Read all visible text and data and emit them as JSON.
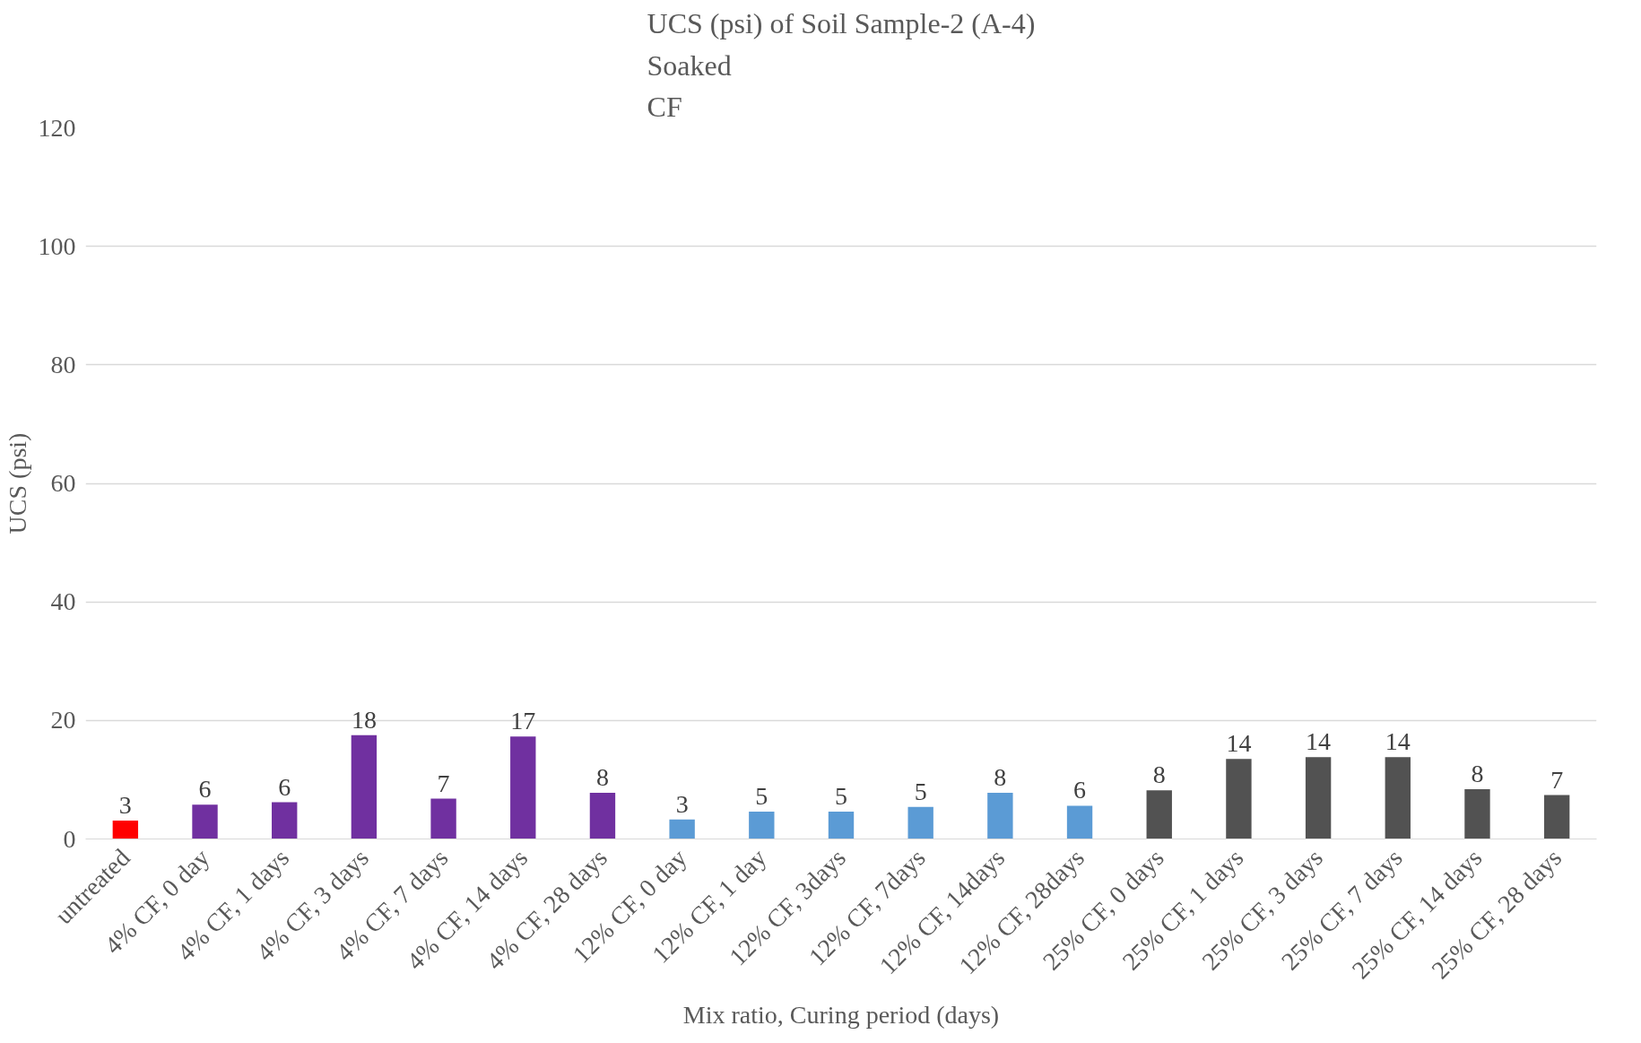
{
  "chart_data": {
    "type": "bar",
    "title": "UCS (psi) of Soil Sample-2 (A-4)\nSoaked\nCF",
    "xlabel": "Mix ratio, Curing period (days)",
    "ylabel": "UCS (psi)",
    "categories": [
      "untreated",
      "4% CF, 0 day",
      "4% CF, 1 days",
      "4% CF, 3 days",
      "4% CF, 7 days",
      "4% CF, 14 days",
      "4% CF, 28 days",
      "12% CF, 0 day",
      "12% CF, 1 day",
      "12% CF, 3days",
      "12% CF, 7days",
      "12% CF, 14days",
      "12% CF, 28days",
      "25% CF, 0 days",
      "25% CF, 1 days",
      "25% CF, 3 days",
      "25% CF, 7 days",
      "25% CF, 14 days",
      "25% CF, 28 days"
    ],
    "values": [
      3.1,
      5.8,
      6.2,
      17.5,
      6.8,
      17.3,
      7.8,
      3.3,
      4.6,
      4.6,
      5.4,
      7.8,
      5.6,
      8.2,
      13.5,
      13.8,
      13.8,
      8.4,
      7.4
    ],
    "value_labels": [
      "3",
      "6",
      "6",
      "18",
      "7",
      "17",
      "8",
      "3",
      "5",
      "5",
      "5",
      "8",
      "6",
      "8",
      "14",
      "14",
      "14",
      "8",
      "7"
    ],
    "colors": [
      "#ff0000",
      "#7030a0",
      "#7030a0",
      "#7030a0",
      "#7030a0",
      "#7030a0",
      "#7030a0",
      "#5b9bd5",
      "#5b9bd5",
      "#5b9bd5",
      "#5b9bd5",
      "#5b9bd5",
      "#5b9bd5",
      "#525252",
      "#525252",
      "#525252",
      "#525252",
      "#525252",
      "#525252"
    ],
    "ylim": [
      0,
      120
    ],
    "yticks": [
      0,
      20,
      40,
      60,
      80,
      100,
      120
    ],
    "grid": "y"
  }
}
